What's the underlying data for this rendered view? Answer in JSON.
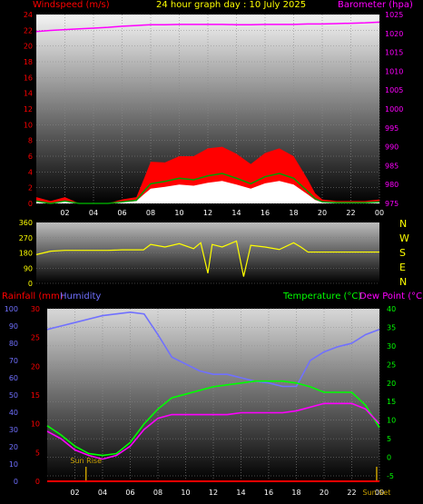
{
  "header": {
    "wind_label": "Windspeed (m/s)",
    "title": "24 hour graph day : 10 July 2025",
    "baro_label": "Barometer (hpa)",
    "rain_label": "Rainfall (mm)",
    "humidity_label": "Humidity",
    "temp_label": "Temperature (°C)",
    "dew_label": "Dew Point (°C)"
  },
  "colors": {
    "wind_label": "#ff0000",
    "title": "#ffff00",
    "baro": "#ff00ff",
    "gust": "#ff0000",
    "avg_wind": "#00a000",
    "wind_low": "#ffffff",
    "direction": "#ffff00",
    "rain": "#ff0000",
    "humidity": "#7070ff",
    "temperature": "#00ff00",
    "dew_point": "#ff00ff",
    "sun": "#c8a000"
  },
  "hour_ticks": [
    "02",
    "04",
    "06",
    "08",
    "10",
    "12",
    "14",
    "16",
    "18",
    "20",
    "22",
    "00"
  ],
  "compass": [
    "N",
    "W",
    "S",
    "E",
    "N"
  ],
  "sun_labels": {
    "rise": "Sun Rise",
    "set": "Sun Set"
  },
  "chart_data": [
    {
      "type": "area",
      "name": "wind-barometer",
      "x_hours": [
        0,
        1,
        2,
        3,
        4,
        5,
        6,
        7,
        7.5,
        8,
        9,
        10,
        11,
        12,
        13,
        14,
        15,
        16,
        17,
        18,
        19,
        19.5,
        20,
        21,
        22,
        23,
        24
      ],
      "series": [
        {
          "name": "Windspeed gust",
          "values": [
            0.8,
            0.3,
            0.8,
            0,
            0,
            0,
            0.5,
            0.8,
            3,
            5.3,
            5.2,
            6,
            6,
            7,
            7.2,
            6.3,
            5,
            6.4,
            7,
            6,
            3,
            1.3,
            0.5,
            0.3,
            0.3,
            0.3,
            0.5
          ]
        },
        {
          "name": "Windspeed average",
          "values": [
            0.3,
            0,
            0.3,
            0,
            0,
            0,
            0.2,
            0.4,
            1.5,
            2.5,
            2.8,
            3.2,
            3,
            3.5,
            3.8,
            3.2,
            2.5,
            3.4,
            3.8,
            3.2,
            1.5,
            0.6,
            0.2,
            0.1,
            0.1,
            0.1,
            0.2
          ]
        },
        {
          "name": "Barometer",
          "values": [
            1020.5,
            1020.8,
            1021,
            1021.2,
            1021.4,
            1021.6,
            1021.9,
            1022.1,
            1022.2,
            1022.3,
            1022.3,
            1022.4,
            1022.4,
            1022.4,
            1022.4,
            1022.3,
            1022.3,
            1022.4,
            1022.4,
            1022.4,
            1022.5,
            1022.5,
            1022.5,
            1022.6,
            1022.7,
            1022.8,
            1023
          ]
        }
      ],
      "ylim_left": [
        0,
        24
      ],
      "ylim_right": [
        975,
        1025
      ],
      "left_ticks": [
        0,
        2,
        4,
        6,
        8,
        10,
        12,
        14,
        16,
        18,
        20,
        22,
        24
      ],
      "right_ticks": [
        975,
        980,
        985,
        990,
        995,
        1000,
        1005,
        1010,
        1015,
        1020,
        1025
      ]
    },
    {
      "type": "line",
      "name": "wind-direction",
      "x_hours": [
        0,
        1,
        2,
        3,
        4,
        5,
        6,
        7,
        7.5,
        8,
        9,
        10,
        11,
        11.5,
        12,
        12.3,
        13,
        14,
        14.5,
        15,
        16,
        17,
        18,
        18.5,
        19,
        20,
        21,
        22,
        23,
        24
      ],
      "series": [
        {
          "name": "Wind direction",
          "values": [
            170,
            190,
            195,
            195,
            195,
            195,
            198,
            198,
            198,
            230,
            215,
            235,
            205,
            240,
            60,
            230,
            215,
            250,
            40,
            225,
            215,
            200,
            240,
            215,
            185,
            185,
            185,
            185,
            185,
            185
          ]
        }
      ],
      "ylim": [
        0,
        360
      ],
      "left_ticks": [
        0,
        90,
        180,
        270,
        360
      ]
    },
    {
      "type": "line",
      "name": "temperature-humidity",
      "x_hours": [
        0,
        1,
        2,
        3,
        4,
        5,
        6,
        7,
        8,
        9,
        10,
        11,
        12,
        13,
        14,
        15,
        16,
        17,
        18,
        19,
        20,
        21,
        22,
        23,
        24
      ],
      "series": [
        {
          "name": "Humidity",
          "values": [
            88,
            90,
            92,
            94,
            96,
            97,
            98,
            97,
            85,
            72,
            68,
            64,
            62,
            62,
            60,
            58,
            57,
            55,
            55,
            70,
            75,
            78,
            80,
            85,
            88
          ]
        },
        {
          "name": "Temperature",
          "values": [
            8.5,
            6,
            3,
            1,
            0.5,
            1,
            4,
            9,
            13,
            16,
            17,
            18,
            19,
            19.5,
            20,
            20.5,
            20.5,
            20.5,
            20,
            19,
            17.5,
            17.5,
            17.5,
            14,
            8
          ]
        },
        {
          "name": "Dew Point",
          "values": [
            7,
            5,
            2,
            0.5,
            -0.5,
            0.5,
            3,
            7.5,
            10.5,
            11.5,
            11.5,
            11.5,
            11.5,
            11.5,
            12,
            12,
            12,
            12,
            12.5,
            13.5,
            14.5,
            14.5,
            14.5,
            13,
            9
          ]
        },
        {
          "name": "Rainfall",
          "values": [
            0,
            0,
            0,
            0,
            0,
            0,
            0,
            0,
            0,
            0,
            0,
            0,
            0,
            0,
            0,
            0,
            0,
            0,
            0,
            0,
            0,
            0,
            0,
            0,
            0
          ]
        }
      ],
      "sunrise_hour": 2.8,
      "sunset_hour": 23.8,
      "rain_ticks": [
        0,
        5,
        10,
        15,
        20,
        25,
        30
      ],
      "humidity_ticks": [
        0,
        10,
        20,
        30,
        40,
        50,
        60,
        70,
        80,
        90,
        100
      ],
      "temp_ticks": [
        -5,
        0,
        5,
        10,
        15,
        20,
        25,
        30,
        35,
        40
      ]
    }
  ]
}
